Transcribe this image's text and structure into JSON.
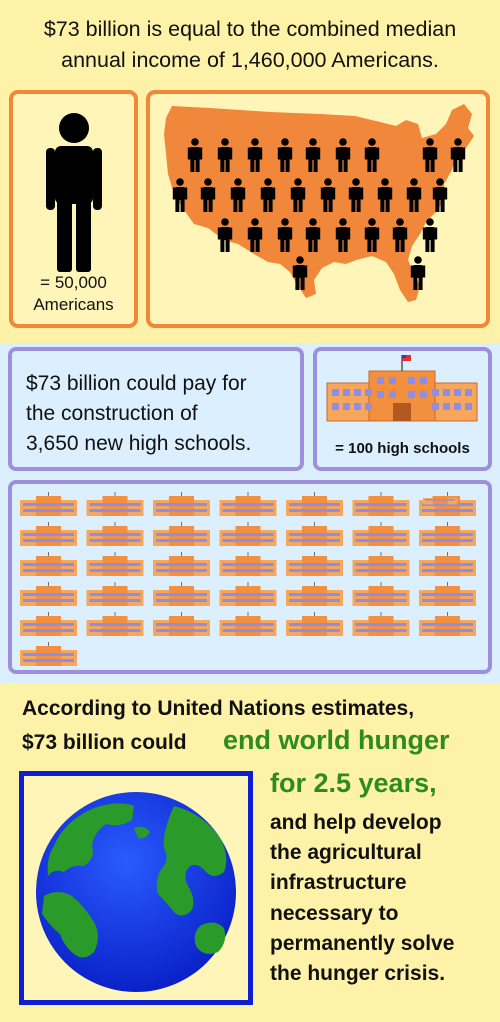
{
  "headline": {
    "line1": "$73 billion is equal to the combined median",
    "line2": "annual income of 1,460,000 Americans."
  },
  "people": {
    "legend_value": "= 50,000",
    "legend_unit": "Americans",
    "icon_count": 29
  },
  "schools": {
    "line1": "$73 billion could pay for",
    "line2": "the construction of",
    "line3": "3,650 new high schools.",
    "legend": "= 100 high schools",
    "icon_count": 36.5
  },
  "hunger": {
    "line1": "According to United Nations estimates,",
    "line2": "$73 billion could",
    "green1": "end world hunger",
    "green2": "for 2.5 years,",
    "rest": "and help develop\nthe agricultural\ninfrastructure\nnecessary to\npermanently solve\nthe hunger crisis."
  },
  "colors": {
    "orange": "#f0873a",
    "green_text": "#2e8b1e",
    "globe_blue": "#0d1fd0",
    "frame_purple": "#9d8fde"
  }
}
